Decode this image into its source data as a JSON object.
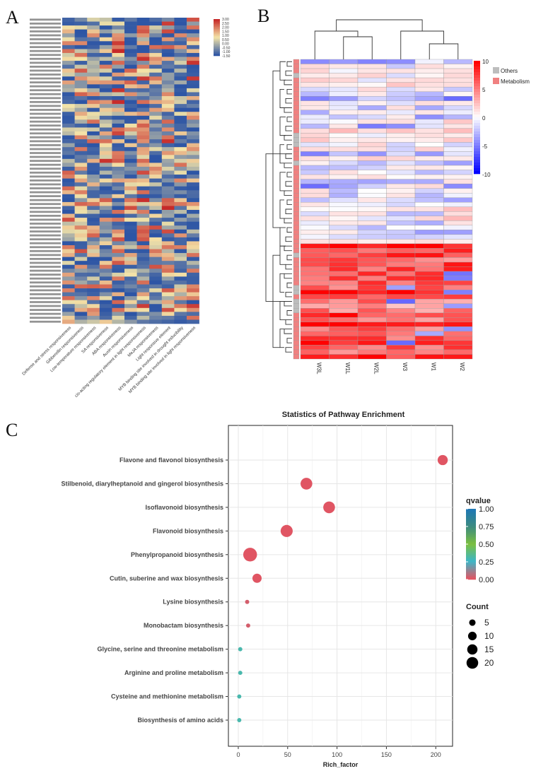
{
  "panel_labels": {
    "a": "A",
    "b": "B",
    "c": "C"
  },
  "heatmap_a": {
    "row_count": 78,
    "columns": [
      "Defense and stress responsiveness",
      "Gibberellin responsiveness",
      "Low-temperature responsiveness",
      "SA responsiveness",
      "ABA responsiveness",
      "Auxin responsiveness",
      "cis-acting regulatory element in light responsiveness",
      "MeJA responsiveness",
      "Light responsive element",
      "MYB binding site involved in drought inducibility",
      "MYB binding site involved in light responsiveness"
    ],
    "scale": {
      "ticks": [
        "3.00",
        "2.50",
        "2.00",
        "1.50",
        "1.00",
        "0.50",
        "0.00",
        "-0.50",
        "-1.00",
        "-1.50"
      ],
      "colors": [
        "#c62828",
        "#f4e4a8",
        "#2d55a5"
      ]
    }
  },
  "heatmap_b": {
    "columns": [
      "W3L",
      "W1L",
      "W2L",
      "W3",
      "W1",
      "W2"
    ],
    "row_count": 65,
    "scale_ticks": [
      "10",
      "5",
      "0",
      "-5",
      "-10"
    ],
    "scale_colors": [
      "#ff0000",
      "#ffffff",
      "#0000ff"
    ],
    "legend": [
      {
        "label": "Others",
        "color": "#bdbdbd"
      },
      {
        "label": "Metabolism",
        "color": "#f08080"
      }
    ]
  },
  "chart_data": {
    "type": "scatter",
    "title": "Statistics of Pathway Enrichment",
    "xlabel": "Rich_factor",
    "ylabel": "",
    "xlim": [
      -10,
      217
    ],
    "xticks": [
      0,
      50,
      100,
      150,
      200
    ],
    "grid": true,
    "categories": [
      "Flavone and flavonol biosynthesis",
      "Stilbenoid, diarylheptanoid and gingerol biosynthesis",
      "Isoflavonoid biosynthesis",
      "Flavonoid biosynthesis",
      "Phenylpropanoid biosynthesis",
      "Cutin, suberine and wax biosynthesis",
      "Lysine biosynthesis",
      "Monobactam biosynthesis",
      "Glycine, serine and threonine metabolism",
      "Arginine and proline metabolism",
      "Cysteine and methionine metabolism",
      "Biosynthesis of amino acids"
    ],
    "points": [
      {
        "pathway": "Flavone and flavonol biosynthesis",
        "rich_factor": 207,
        "count": 10,
        "qvalue": 0.0
      },
      {
        "pathway": "Stilbenoid, diarylheptanoid and gingerol biosynthesis",
        "rich_factor": 69,
        "count": 14,
        "qvalue": 0.0
      },
      {
        "pathway": "Isoflavonoid biosynthesis",
        "rich_factor": 92,
        "count": 14,
        "qvalue": 0.0
      },
      {
        "pathway": "Flavonoid biosynthesis",
        "rich_factor": 49,
        "count": 15,
        "qvalue": 0.0
      },
      {
        "pathway": "Phenylpropanoid biosynthesis",
        "rich_factor": 12,
        "count": 20,
        "qvalue": 0.0
      },
      {
        "pathway": "Cutin, suberine and wax biosynthesis",
        "rich_factor": 19,
        "count": 8,
        "qvalue": 0.0
      },
      {
        "pathway": "Lysine biosynthesis",
        "rich_factor": 9,
        "count": 1,
        "qvalue": 0.02
      },
      {
        "pathway": "Monobactam biosynthesis",
        "rich_factor": 10,
        "count": 1,
        "qvalue": 0.02
      },
      {
        "pathway": "Glycine, serine and threonine metabolism",
        "rich_factor": 2,
        "count": 1,
        "qvalue": 0.3
      },
      {
        "pathway": "Arginine and proline metabolism",
        "rich_factor": 2,
        "count": 1,
        "qvalue": 0.3
      },
      {
        "pathway": "Cysteine and methionine metabolism",
        "rich_factor": 1,
        "count": 1,
        "qvalue": 0.3
      },
      {
        "pathway": "Biosynthesis of amino acids",
        "rich_factor": 1,
        "count": 1,
        "qvalue": 0.3
      }
    ],
    "color_legend": {
      "title": "qvalue",
      "ticks": [
        "1.00",
        "0.75",
        "0.50",
        "0.25",
        "0.00"
      ],
      "colors": [
        "#1f78b4",
        "#3d8c7f",
        "#7cbf3f",
        "#3cb6c8",
        "#e05563"
      ]
    },
    "size_legend": {
      "title": "Count",
      "values": [
        5,
        10,
        15,
        20
      ]
    }
  }
}
